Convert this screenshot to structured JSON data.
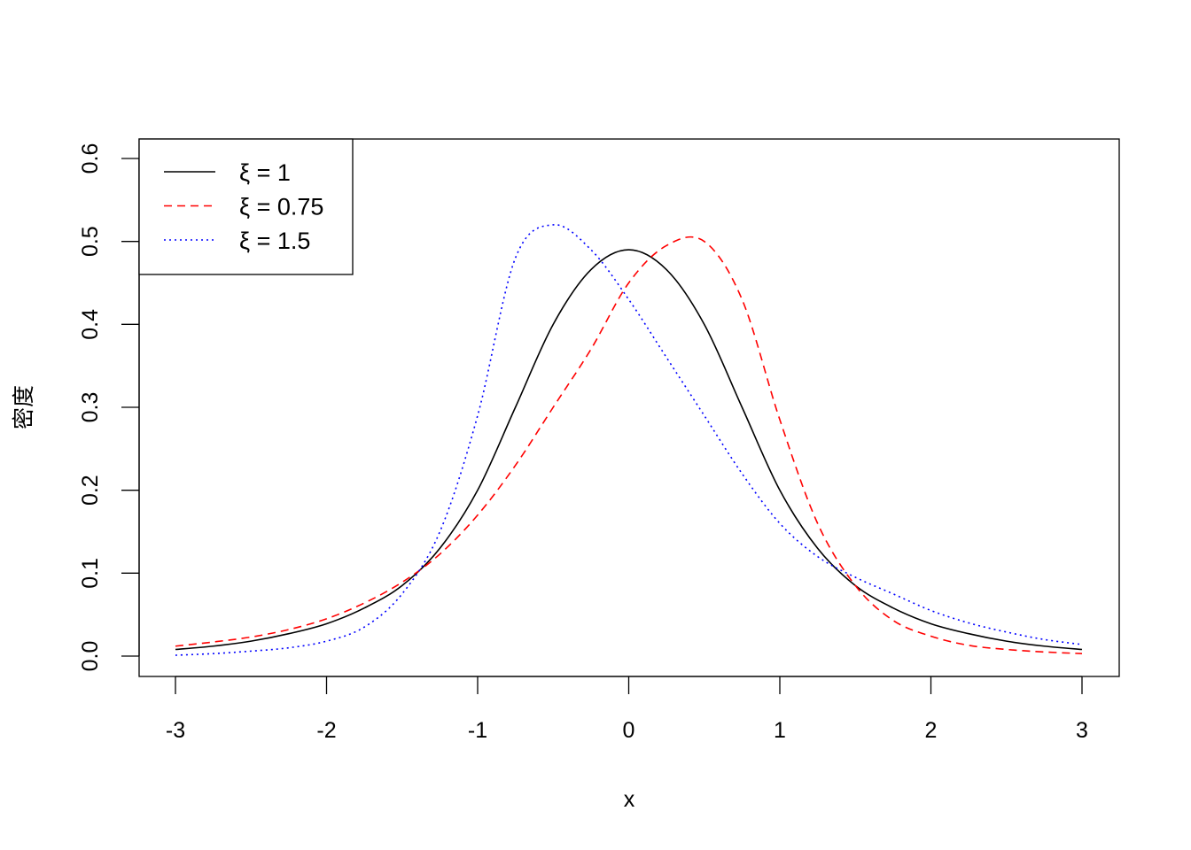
{
  "chart_data": {
    "type": "line",
    "xlabel": "x",
    "ylabel": "密度",
    "xlim": [
      -3,
      3
    ],
    "ylim": [
      0,
      0.6
    ],
    "x_ticks": [
      "-3",
      "-2",
      "-1",
      "0",
      "1",
      "2",
      "3"
    ],
    "y_ticks": [
      "0.0",
      "0.1",
      "0.2",
      "0.3",
      "0.4",
      "0.5",
      "0.6"
    ],
    "grid": false,
    "legend_position": "top-left",
    "x": [
      -3.0,
      -2.75,
      -2.5,
      -2.25,
      -2.0,
      -1.75,
      -1.5,
      -1.25,
      -1.0,
      -0.75,
      -0.5,
      -0.25,
      0.0,
      0.25,
      0.5,
      0.75,
      1.0,
      1.25,
      1.5,
      1.75,
      2.0,
      2.25,
      2.5,
      2.75,
      3.0
    ],
    "series": [
      {
        "name": "ξ = 1",
        "color": "#000000",
        "dash": "solid",
        "values": [
          0.008,
          0.012,
          0.018,
          0.027,
          0.039,
          0.058,
          0.085,
          0.13,
          0.2,
          0.3,
          0.4,
          0.466,
          0.49,
          0.466,
          0.4,
          0.3,
          0.2,
          0.13,
          0.085,
          0.058,
          0.039,
          0.027,
          0.018,
          0.012,
          0.008
        ]
      },
      {
        "name": "ξ = 0.75",
        "color": "#ff0000",
        "dash": "dashed",
        "values": [
          0.012,
          0.017,
          0.023,
          0.032,
          0.045,
          0.064,
          0.089,
          0.123,
          0.17,
          0.23,
          0.3,
          0.37,
          0.45,
          0.495,
          0.5,
          0.43,
          0.285,
          0.16,
          0.085,
          0.043,
          0.024,
          0.013,
          0.008,
          0.005,
          0.003
        ]
      },
      {
        "name": "ξ = 1.5",
        "color": "#0000ff",
        "dash": "dotted",
        "values": [
          0.001,
          0.003,
          0.006,
          0.01,
          0.018,
          0.035,
          0.075,
          0.15,
          0.29,
          0.48,
          0.52,
          0.49,
          0.43,
          0.36,
          0.29,
          0.22,
          0.16,
          0.12,
          0.095,
          0.075,
          0.055,
          0.04,
          0.029,
          0.02,
          0.014
        ]
      }
    ]
  }
}
